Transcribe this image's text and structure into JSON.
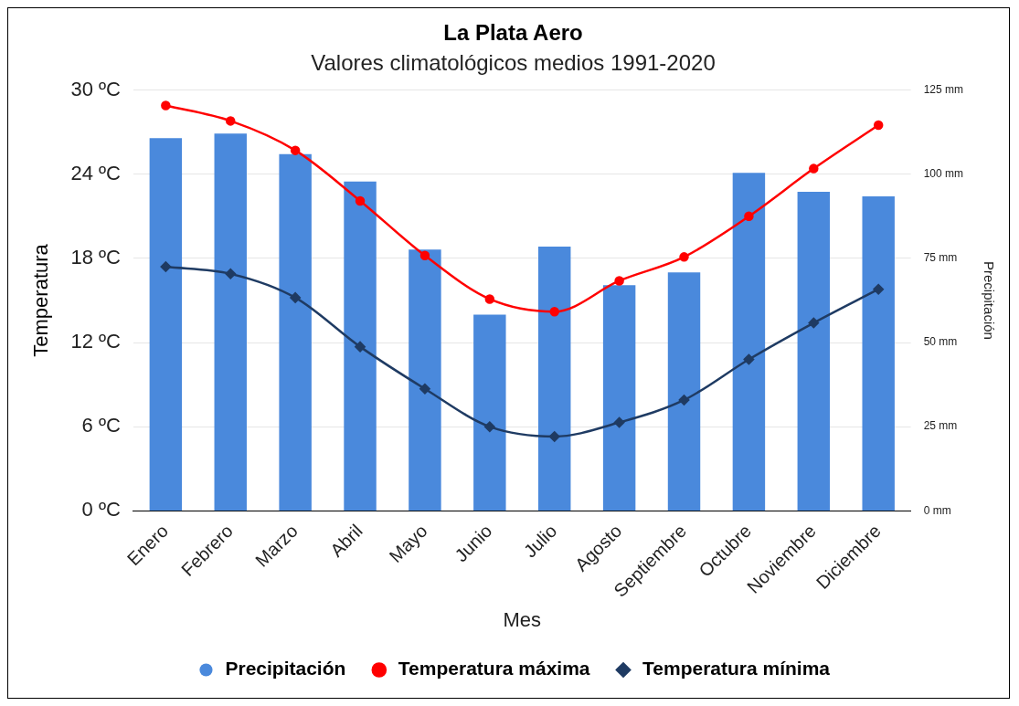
{
  "chart_data": {
    "type": "bar",
    "title": "La Plata Aero",
    "subtitle": "Valores climatológicos medios 1991-2020",
    "xlabel": "Mes",
    "ylabel": "Temperatura",
    "y2label": "Precipitación",
    "categories": [
      "Enero",
      "Febrero",
      "Marzo",
      "Abril",
      "Mayo",
      "Junio",
      "Julio",
      "Agosto",
      "Septiembre",
      "Octubre",
      "Noviembre",
      "Diciembre"
    ],
    "series": [
      {
        "name": "Precipitación",
        "axis": "y2",
        "color": "#4a89dc",
        "values": [
          110.7,
          112.1,
          106.0,
          97.8,
          77.6,
          58.3,
          78.5,
          67.0,
          70.8,
          100.4,
          94.8,
          93.4
        ]
      },
      {
        "name": "Temperatura máxima",
        "type": "line",
        "axis": "y",
        "color": "#ff0000",
        "marker": "circle",
        "values": [
          28.9,
          27.8,
          25.7,
          22.1,
          18.2,
          15.1,
          14.2,
          16.4,
          18.1,
          21.0,
          24.4,
          27.5
        ]
      },
      {
        "name": "Temperatura mínima",
        "type": "line",
        "axis": "y",
        "color": "#1f3b63",
        "marker": "diamond",
        "values": [
          17.4,
          16.9,
          15.2,
          11.7,
          8.7,
          6.0,
          5.3,
          6.3,
          7.9,
          10.8,
          13.4,
          15.8
        ]
      }
    ],
    "ylim": [
      0,
      30
    ],
    "yticks": [
      {
        "value": 0,
        "label": "0 ºC"
      },
      {
        "value": 6,
        "label": "6 ºC"
      },
      {
        "value": 12,
        "label": "12 ºC"
      },
      {
        "value": 18,
        "label": "18 ºC"
      },
      {
        "value": 24,
        "label": "24 ºC"
      },
      {
        "value": 30,
        "label": "30 ºC"
      }
    ],
    "y2lim": [
      0,
      125
    ],
    "y2ticks": [
      {
        "value": 0,
        "label": "0 mm"
      },
      {
        "value": 25,
        "label": "25 mm"
      },
      {
        "value": 50,
        "label": "50 mm"
      },
      {
        "value": 75,
        "label": "75 mm"
      },
      {
        "value": 100,
        "label": "100 mm"
      },
      {
        "value": 125,
        "label": "125 mm"
      }
    ],
    "grid": "y",
    "legend": "bottom"
  }
}
